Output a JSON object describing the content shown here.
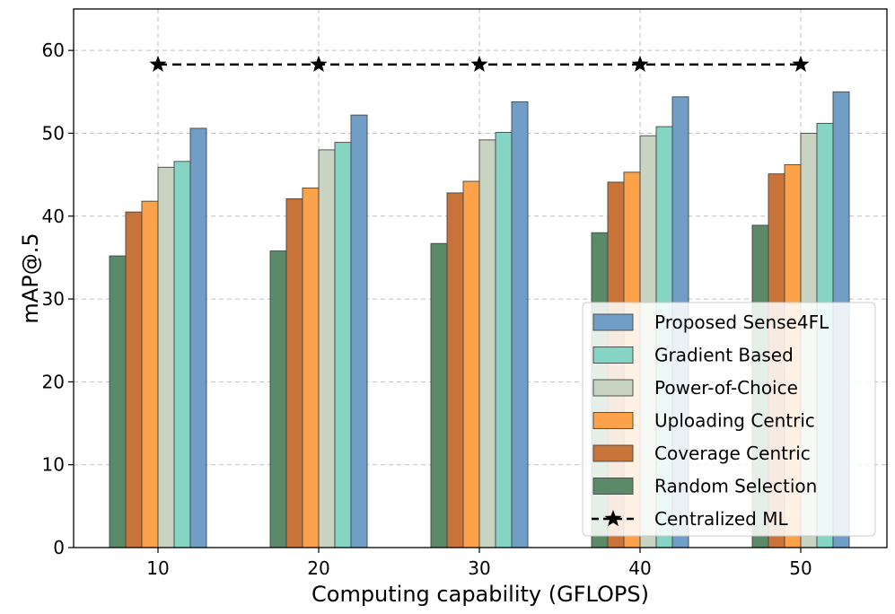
{
  "chart_data": {
    "type": "bar",
    "title": "",
    "xlabel": "Computing capability (GFLOPS)",
    "ylabel": "mAP@.5",
    "categories": [
      "10",
      "20",
      "30",
      "40",
      "50"
    ],
    "ylim": [
      0,
      65
    ],
    "yticks": [
      0,
      10,
      20,
      30,
      40,
      50,
      60
    ],
    "grid": true,
    "legend_position": "lower-right",
    "series": [
      {
        "name": "Random Selection",
        "color": "#5b8a68",
        "values": [
          35.2,
          35.8,
          36.7,
          38.0,
          38.9
        ]
      },
      {
        "name": "Coverage Centric",
        "color": "#c8733a",
        "values": [
          40.5,
          42.1,
          42.8,
          44.1,
          45.1
        ]
      },
      {
        "name": "Uploading Centric",
        "color": "#fca24a",
        "values": [
          41.8,
          43.4,
          44.2,
          45.3,
          46.2
        ]
      },
      {
        "name": "Power-of-Choice",
        "color": "#c9d3c2",
        "values": [
          45.9,
          48.0,
          49.2,
          49.7,
          50.0
        ]
      },
      {
        "name": "Gradient Based",
        "color": "#86d4c3",
        "values": [
          46.6,
          48.9,
          50.1,
          50.8,
          51.2
        ]
      },
      {
        "name": "Proposed Sense4FL",
        "color": "#709ec6",
        "values": [
          50.6,
          52.2,
          53.8,
          54.4,
          55.0
        ]
      }
    ],
    "line_series": {
      "name": "Centralized ML",
      "color": "#000000",
      "marker": "star",
      "style": "dashed",
      "values": [
        58.3,
        58.3,
        58.3,
        58.3,
        58.3
      ]
    },
    "legend_order": [
      "Proposed Sense4FL",
      "Gradient Based",
      "Power-of-Choice",
      "Uploading Centric",
      "Coverage Centric",
      "Random Selection",
      "Centralized ML"
    ]
  }
}
